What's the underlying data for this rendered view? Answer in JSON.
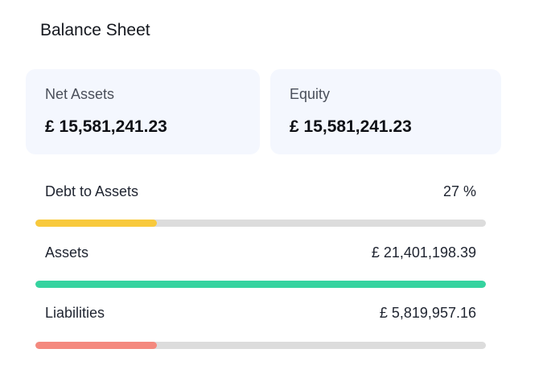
{
  "header": {
    "title": "Balance Sheet"
  },
  "cards": {
    "net_assets": {
      "label": "Net Assets",
      "value": "£ 15,581,241.23"
    },
    "equity": {
      "label": "Equity",
      "value": "£ 15,581,241.23"
    }
  },
  "metrics": [
    {
      "label": "Debt to Assets",
      "value": "27 %",
      "fraction": 0.27,
      "color": "#f8c93c"
    },
    {
      "label": "Assets",
      "value": "£ 21,401,198.39",
      "fraction": 1.0,
      "color": "#35d39f"
    },
    {
      "label": "Liabilities",
      "value": "£ 5,819,957.16",
      "fraction": 0.27,
      "color": "#f4897e"
    }
  ]
}
